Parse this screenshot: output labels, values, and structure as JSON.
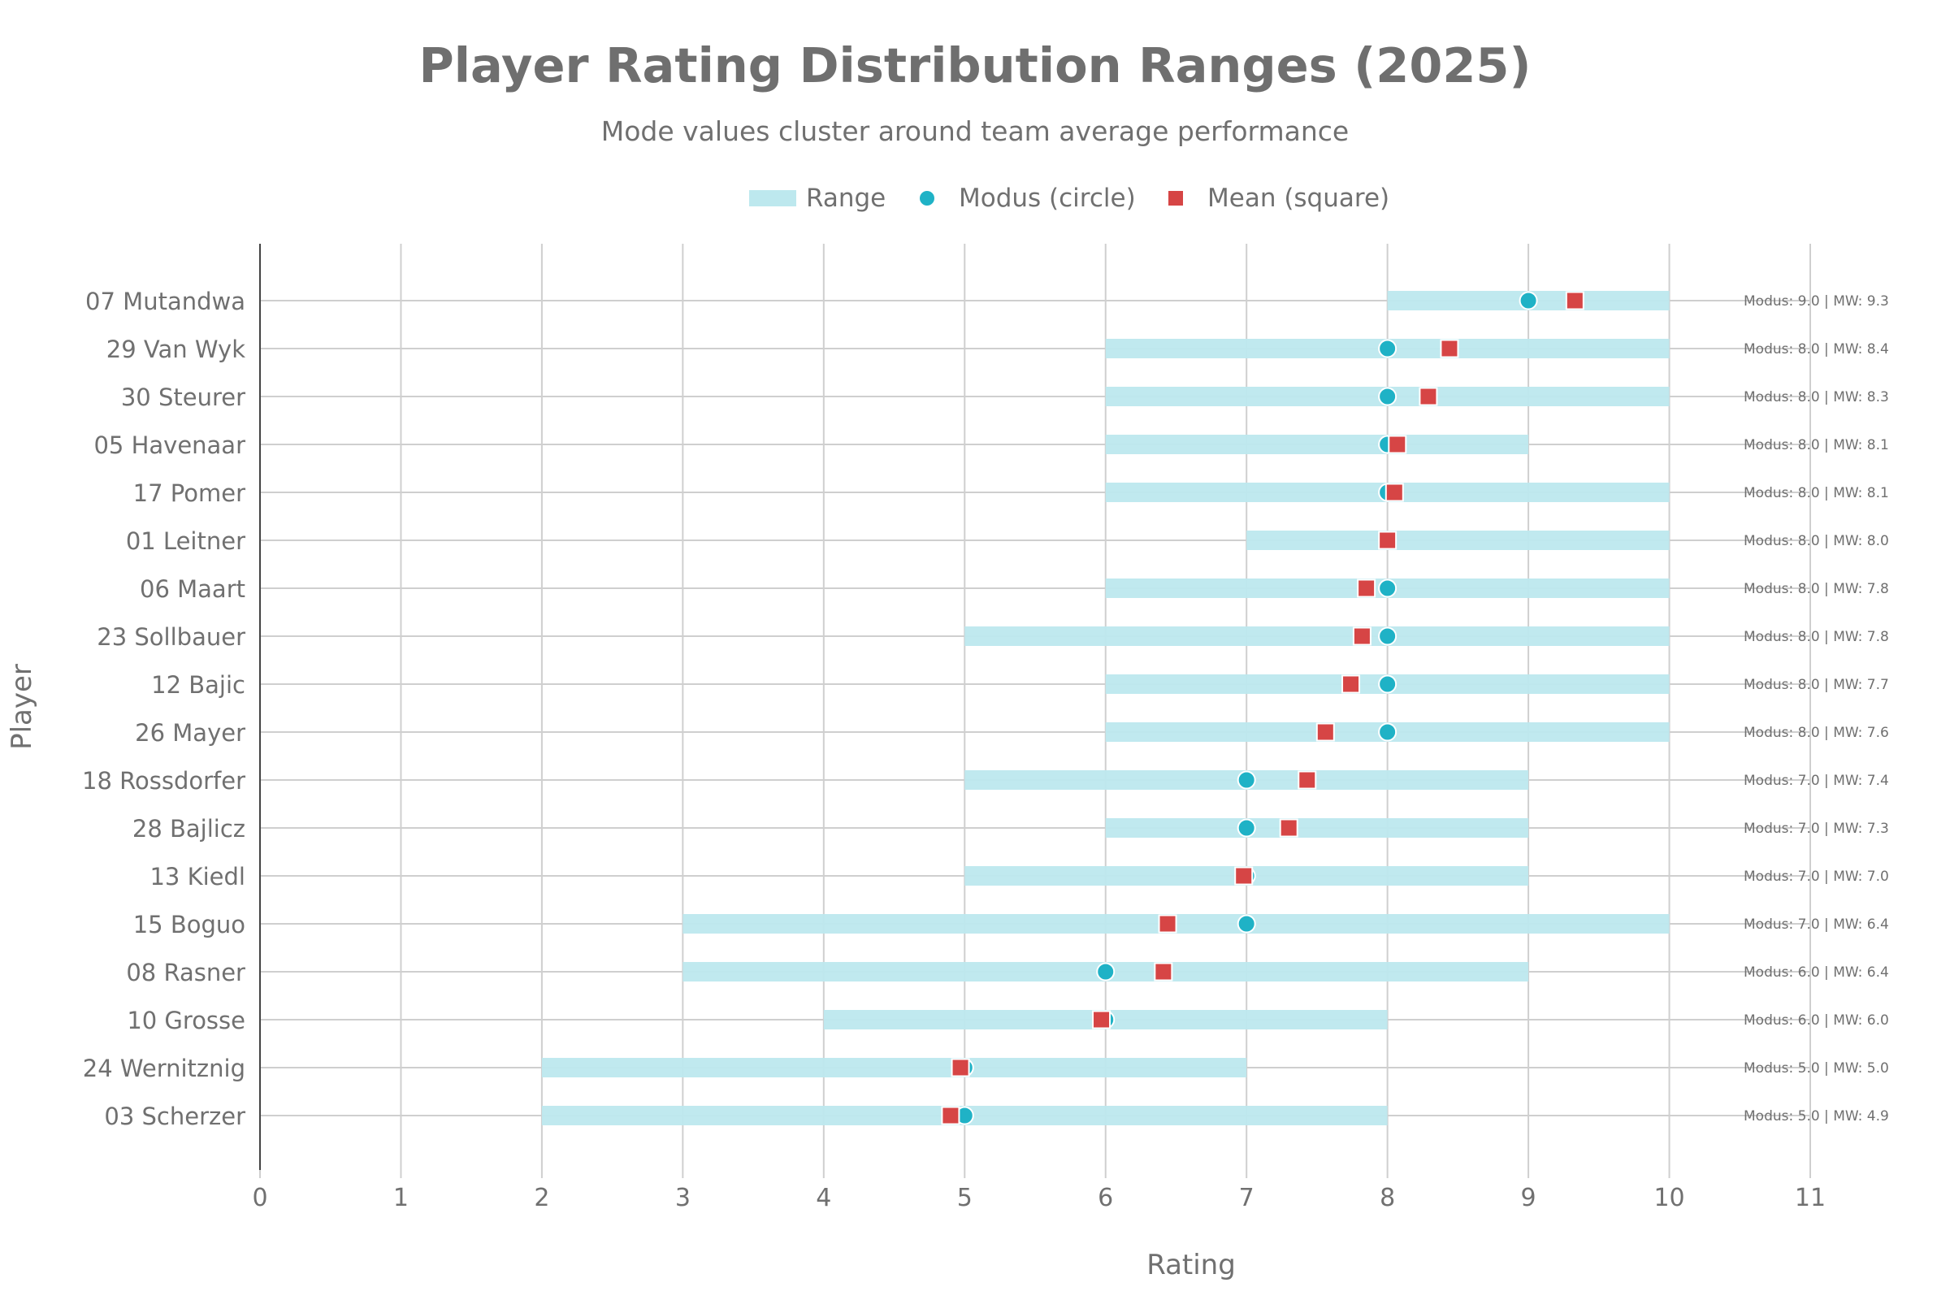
{
  "chart_data": {
    "type": "range-dot",
    "title": "Player Rating Distribution Ranges (2025)",
    "subtitle": "Mode values cluster around team average performance",
    "xlabel": "Rating",
    "ylabel": "Player",
    "xlim": [
      0,
      11
    ],
    "xticks": [
      "0",
      "1",
      "2",
      "3",
      "4",
      "5",
      "6",
      "7",
      "8",
      "9",
      "10",
      "11"
    ],
    "grid": true,
    "legend_position": "top-center",
    "legend": [
      {
        "key": "range",
        "label": "Range"
      },
      {
        "key": "modus",
        "label": "Modus (circle)"
      },
      {
        "key": "mean",
        "label": "Mean (square)"
      }
    ],
    "colors": {
      "range": "#bde8ee",
      "modus": "#1fb2c6",
      "mean": "#d64545",
      "grid": "#cfcfcf",
      "axis": "#444444",
      "text": "#707070"
    },
    "players": [
      {
        "name": "07 Mutandwa",
        "min": 8,
        "max": 10,
        "modus": 9.0,
        "mean": 9.33,
        "annotation": "Modus: 9.0 | MW: 9.3"
      },
      {
        "name": "29 Van Wyk",
        "min": 6,
        "max": 10,
        "modus": 8.0,
        "mean": 8.44,
        "annotation": "Modus: 8.0 | MW: 8.4"
      },
      {
        "name": "30 Steurer",
        "min": 6,
        "max": 10,
        "modus": 8.0,
        "mean": 8.29,
        "annotation": "Modus: 8.0 | MW: 8.3"
      },
      {
        "name": "05 Havenaar",
        "min": 6,
        "max": 9,
        "modus": 8.0,
        "mean": 8.07,
        "annotation": "Modus: 8.0 | MW: 8.1"
      },
      {
        "name": "17 Pomer",
        "min": 6,
        "max": 10,
        "modus": 8.0,
        "mean": 8.05,
        "annotation": "Modus: 8.0 | MW: 8.1"
      },
      {
        "name": "01 Leitner",
        "min": 7,
        "max": 10,
        "modus": 8.0,
        "mean": 8.0,
        "annotation": "Modus: 8.0 | MW: 8.0"
      },
      {
        "name": "06 Maart",
        "min": 6,
        "max": 10,
        "modus": 8.0,
        "mean": 7.85,
        "annotation": "Modus: 8.0 | MW: 7.8"
      },
      {
        "name": "23 Sollbauer",
        "min": 5,
        "max": 10,
        "modus": 8.0,
        "mean": 7.82,
        "annotation": "Modus: 8.0 | MW: 7.8"
      },
      {
        "name": "12 Bajic",
        "min": 6,
        "max": 10,
        "modus": 8.0,
        "mean": 7.74,
        "annotation": "Modus: 8.0 | MW: 7.7"
      },
      {
        "name": "26 Mayer",
        "min": 6,
        "max": 10,
        "modus": 8.0,
        "mean": 7.56,
        "annotation": "Modus: 8.0 | MW: 7.6"
      },
      {
        "name": "18 Rossdorfer",
        "min": 5,
        "max": 9,
        "modus": 7.0,
        "mean": 7.43,
        "annotation": "Modus: 7.0 | MW: 7.4"
      },
      {
        "name": "28 Bajlicz",
        "min": 6,
        "max": 9,
        "modus": 7.0,
        "mean": 7.3,
        "annotation": "Modus: 7.0 | MW: 7.3"
      },
      {
        "name": "13 Kiedl",
        "min": 5,
        "max": 9,
        "modus": 7.0,
        "mean": 6.98,
        "annotation": "Modus: 7.0 | MW: 7.0"
      },
      {
        "name": "15 Boguo",
        "min": 3,
        "max": 10,
        "modus": 7.0,
        "mean": 6.44,
        "annotation": "Modus: 7.0 | MW: 6.4"
      },
      {
        "name": "08 Rasner",
        "min": 3,
        "max": 9,
        "modus": 6.0,
        "mean": 6.41,
        "annotation": "Modus: 6.0 | MW: 6.4"
      },
      {
        "name": "10 Grosse",
        "min": 4,
        "max": 8,
        "modus": 6.0,
        "mean": 5.97,
        "annotation": "Modus: 6.0 | MW: 6.0"
      },
      {
        "name": "24 Wernitznig",
        "min": 2,
        "max": 7,
        "modus": 5.0,
        "mean": 4.97,
        "annotation": "Modus: 5.0 | MW: 5.0"
      },
      {
        "name": "03 Scherzer",
        "min": 2,
        "max": 8,
        "modus": 5.0,
        "mean": 4.9,
        "annotation": "Modus: 5.0 | MW: 4.9"
      }
    ]
  }
}
